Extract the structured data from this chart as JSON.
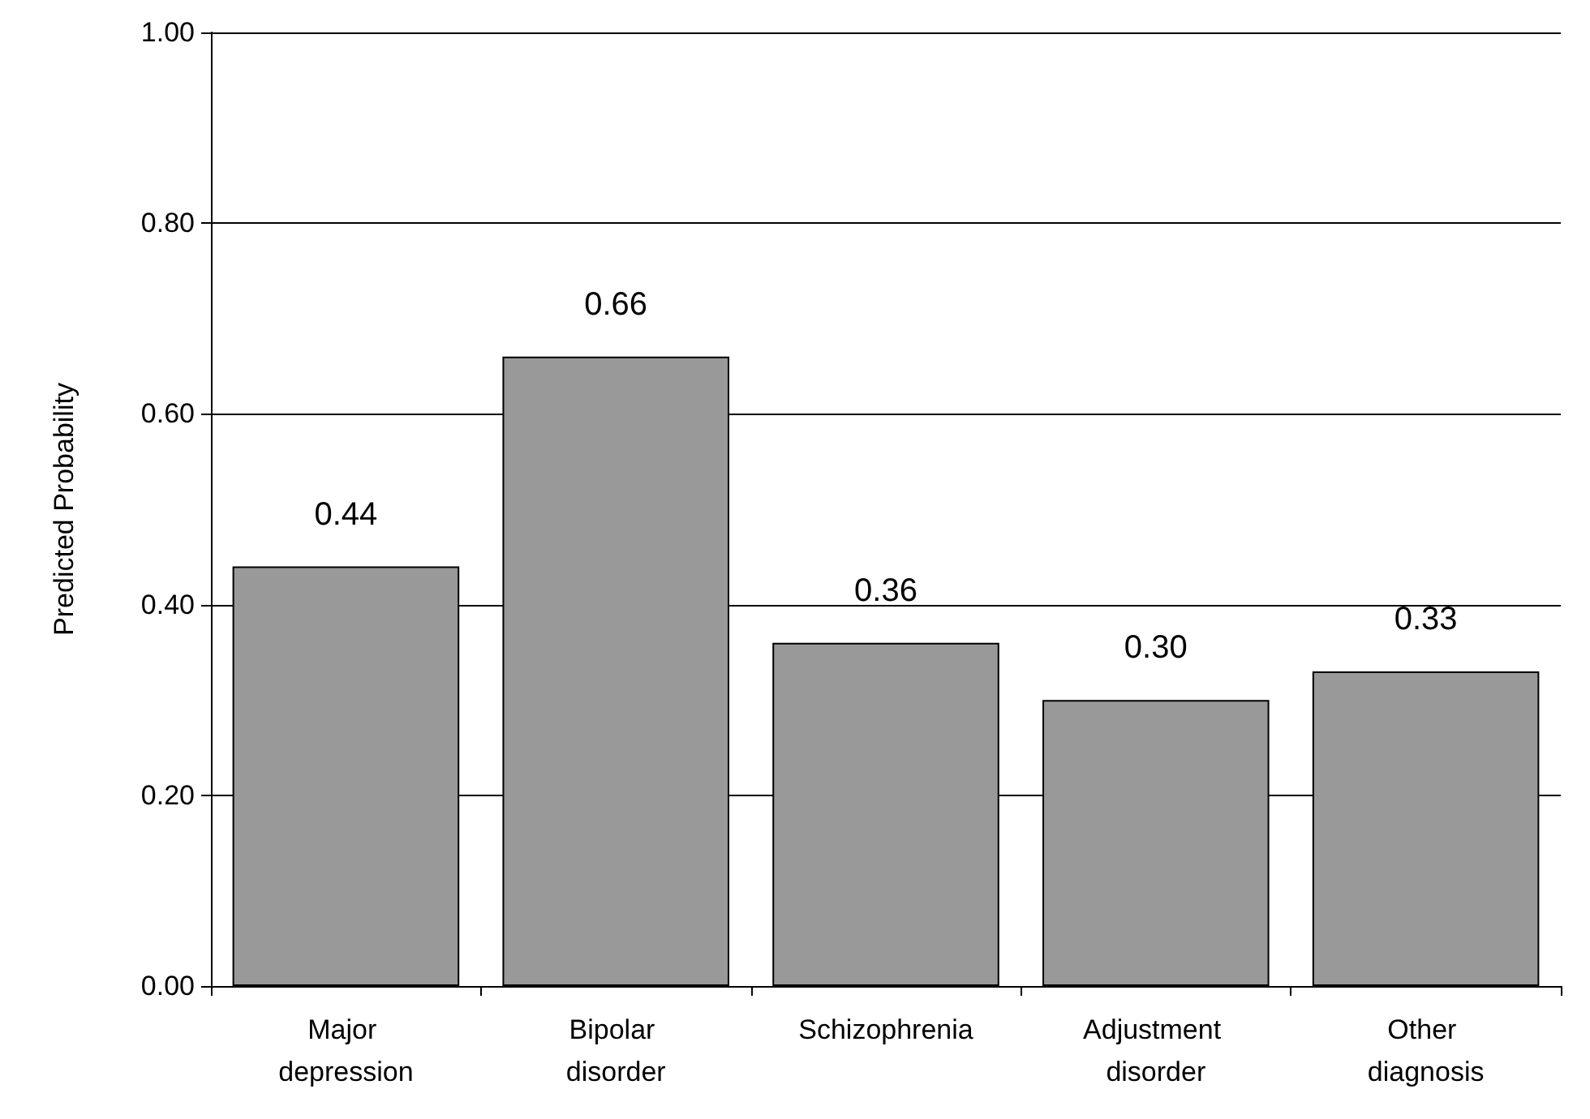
{
  "chart_data": {
    "type": "bar",
    "ylabel": "Predicted Probability",
    "categories": [
      "Major depression",
      "Bipolar disorder",
      "Schizophrenia",
      "Adjustment disorder",
      "Other diagnosis"
    ],
    "values": [
      0.44,
      0.66,
      0.36,
      0.3,
      0.33
    ],
    "value_labels": [
      "0.44",
      "0.66",
      "0.36",
      "0.30",
      "0.33"
    ],
    "color": "#999999",
    "ylim": [
      0,
      1
    ],
    "yticks": [
      {
        "value": 0,
        "label": "0.00"
      },
      {
        "value": 0.2,
        "label": "0.20"
      },
      {
        "value": 0.4,
        "label": "0.40"
      },
      {
        "value": 0.6,
        "label": "0.60"
      },
      {
        "value": 0.8,
        "label": "0.80"
      },
      {
        "value": 1,
        "label": "1.00"
      }
    ],
    "grid": "y"
  }
}
